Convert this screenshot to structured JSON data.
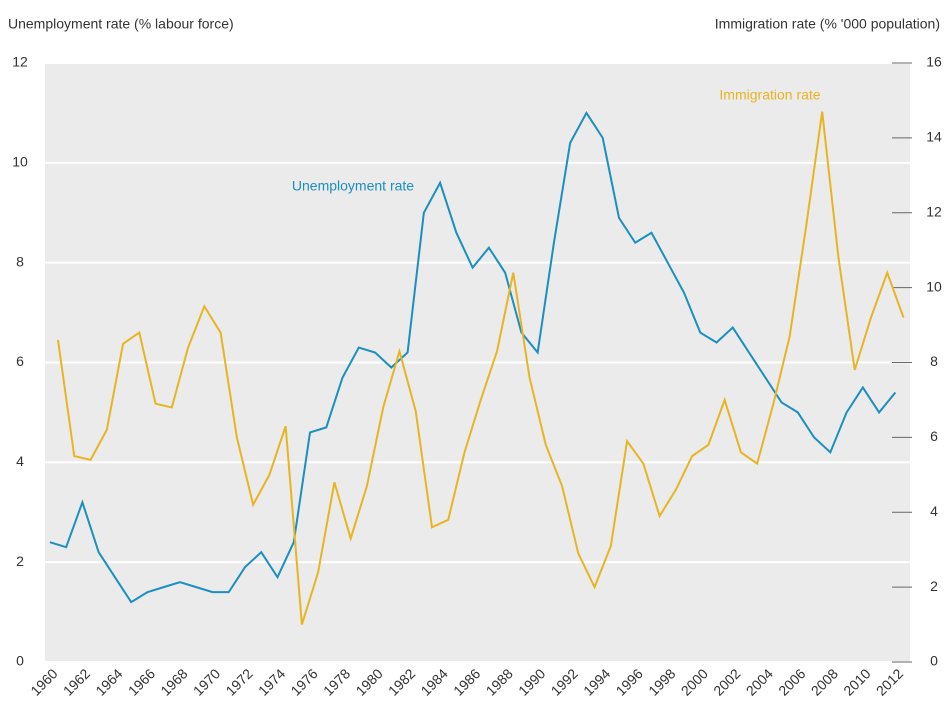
{
  "chart_data": {
    "type": "line",
    "y_label": "Unemployment rate (% labour force)",
    "y2_label": "Immigration rate (% '000 population)",
    "annotations": [
      "Unemployment rate",
      "Immigration rate"
    ],
    "xlim": [
      1959.7,
      2012.9
    ],
    "xticks": [
      1960,
      1962,
      1964,
      1966,
      1968,
      1970,
      1972,
      1974,
      1976,
      1978,
      1980,
      1982,
      1984,
      1986,
      1988,
      1990,
      1992,
      1994,
      1996,
      1998,
      2000,
      2002,
      2004,
      2006,
      2008,
      2010,
      2012
    ],
    "ylim": [
      0,
      12
    ],
    "yticks": [
      0,
      2,
      4,
      6,
      8,
      10,
      12
    ],
    "y2lim": [
      0,
      16
    ],
    "y2ticks": [
      0,
      2,
      4,
      6,
      8,
      10,
      12,
      14,
      16
    ],
    "grid": true,
    "series": [
      {
        "name": "Unemployment rate",
        "color": "#1a8fc0",
        "x": [
          1960,
          1961,
          1962,
          1963,
          1964,
          1965,
          1966,
          1967,
          1968,
          1969,
          1970,
          1971,
          1972,
          1973,
          1974,
          1975,
          1976,
          1977,
          1978,
          1979,
          1980,
          1981,
          1982,
          1983,
          1984,
          1985,
          1986,
          1987,
          1988,
          1989,
          1990,
          1991,
          1992,
          1993,
          1994,
          1995,
          1996,
          1997,
          1998,
          1999,
          2000,
          2001,
          2002,
          2003,
          2004,
          2005,
          2006,
          2007,
          2008,
          2009,
          2010,
          2011,
          2012
        ],
        "values": [
          2.4,
          2.3,
          3.2,
          2.2,
          1.7,
          1.2,
          1.4,
          1.5,
          1.6,
          1.5,
          1.4,
          1.4,
          1.9,
          2.2,
          1.7,
          2.4,
          4.6,
          4.7,
          5.7,
          6.3,
          6.2,
          5.9,
          6.2,
          9.0,
          9.6,
          8.6,
          7.9,
          8.3,
          7.8,
          6.6,
          6.2,
          8.4,
          10.4,
          11.0,
          10.5,
          8.9,
          8.4,
          8.6,
          8.0,
          7.4,
          6.6,
          6.4,
          6.7,
          6.2,
          5.7,
          5.2,
          5.0,
          4.5,
          4.2,
          5.0,
          5.5,
          5.0,
          5.4
        ]
      },
      {
        "name": "Immigration rate",
        "color": "#e8b422",
        "axis": "y2",
        "x": [
          1960.5,
          1961.5,
          1962.5,
          1963.5,
          1964.5,
          1965.5,
          1966.5,
          1967.5,
          1968.5,
          1969.5,
          1970.5,
          1971.5,
          1972.5,
          1973.5,
          1974.5,
          1975.5,
          1976.5,
          1977.5,
          1978.5,
          1979.5,
          1980.5,
          1981.5,
          1982.5,
          1983.5,
          1984.5,
          1985.5,
          1986.5,
          1987.5,
          1988.5,
          1989.5,
          1990.5,
          1991.5,
          1992.5,
          1993.5,
          1994.5,
          1995.5,
          1996.5,
          1997.5,
          1998.5,
          1999.5,
          2000.5,
          2001.5,
          2002.5,
          2003.5,
          2004.5,
          2005.5,
          2006.5,
          2007.5,
          2008.5,
          2009.5,
          2010.5,
          2011.5,
          2012.5
        ],
        "values": [
          8.6,
          5.5,
          5.4,
          6.2,
          8.5,
          8.8,
          6.9,
          6.8,
          8.4,
          9.5,
          8.8,
          6.0,
          4.2,
          5.0,
          6.3,
          1.0,
          2.4,
          4.8,
          3.3,
          4.7,
          6.8,
          8.3,
          6.7,
          3.6,
          3.8,
          5.6,
          7.0,
          8.3,
          10.4,
          7.6,
          5.8,
          4.7,
          2.9,
          2.0,
          3.1,
          5.9,
          5.3,
          3.9,
          4.6,
          5.5,
          5.8,
          7.0,
          5.6,
          5.3,
          6.9,
          8.7,
          11.6,
          14.7,
          10.8,
          7.8,
          9.2,
          10.4,
          9.2
        ]
      }
    ]
  }
}
